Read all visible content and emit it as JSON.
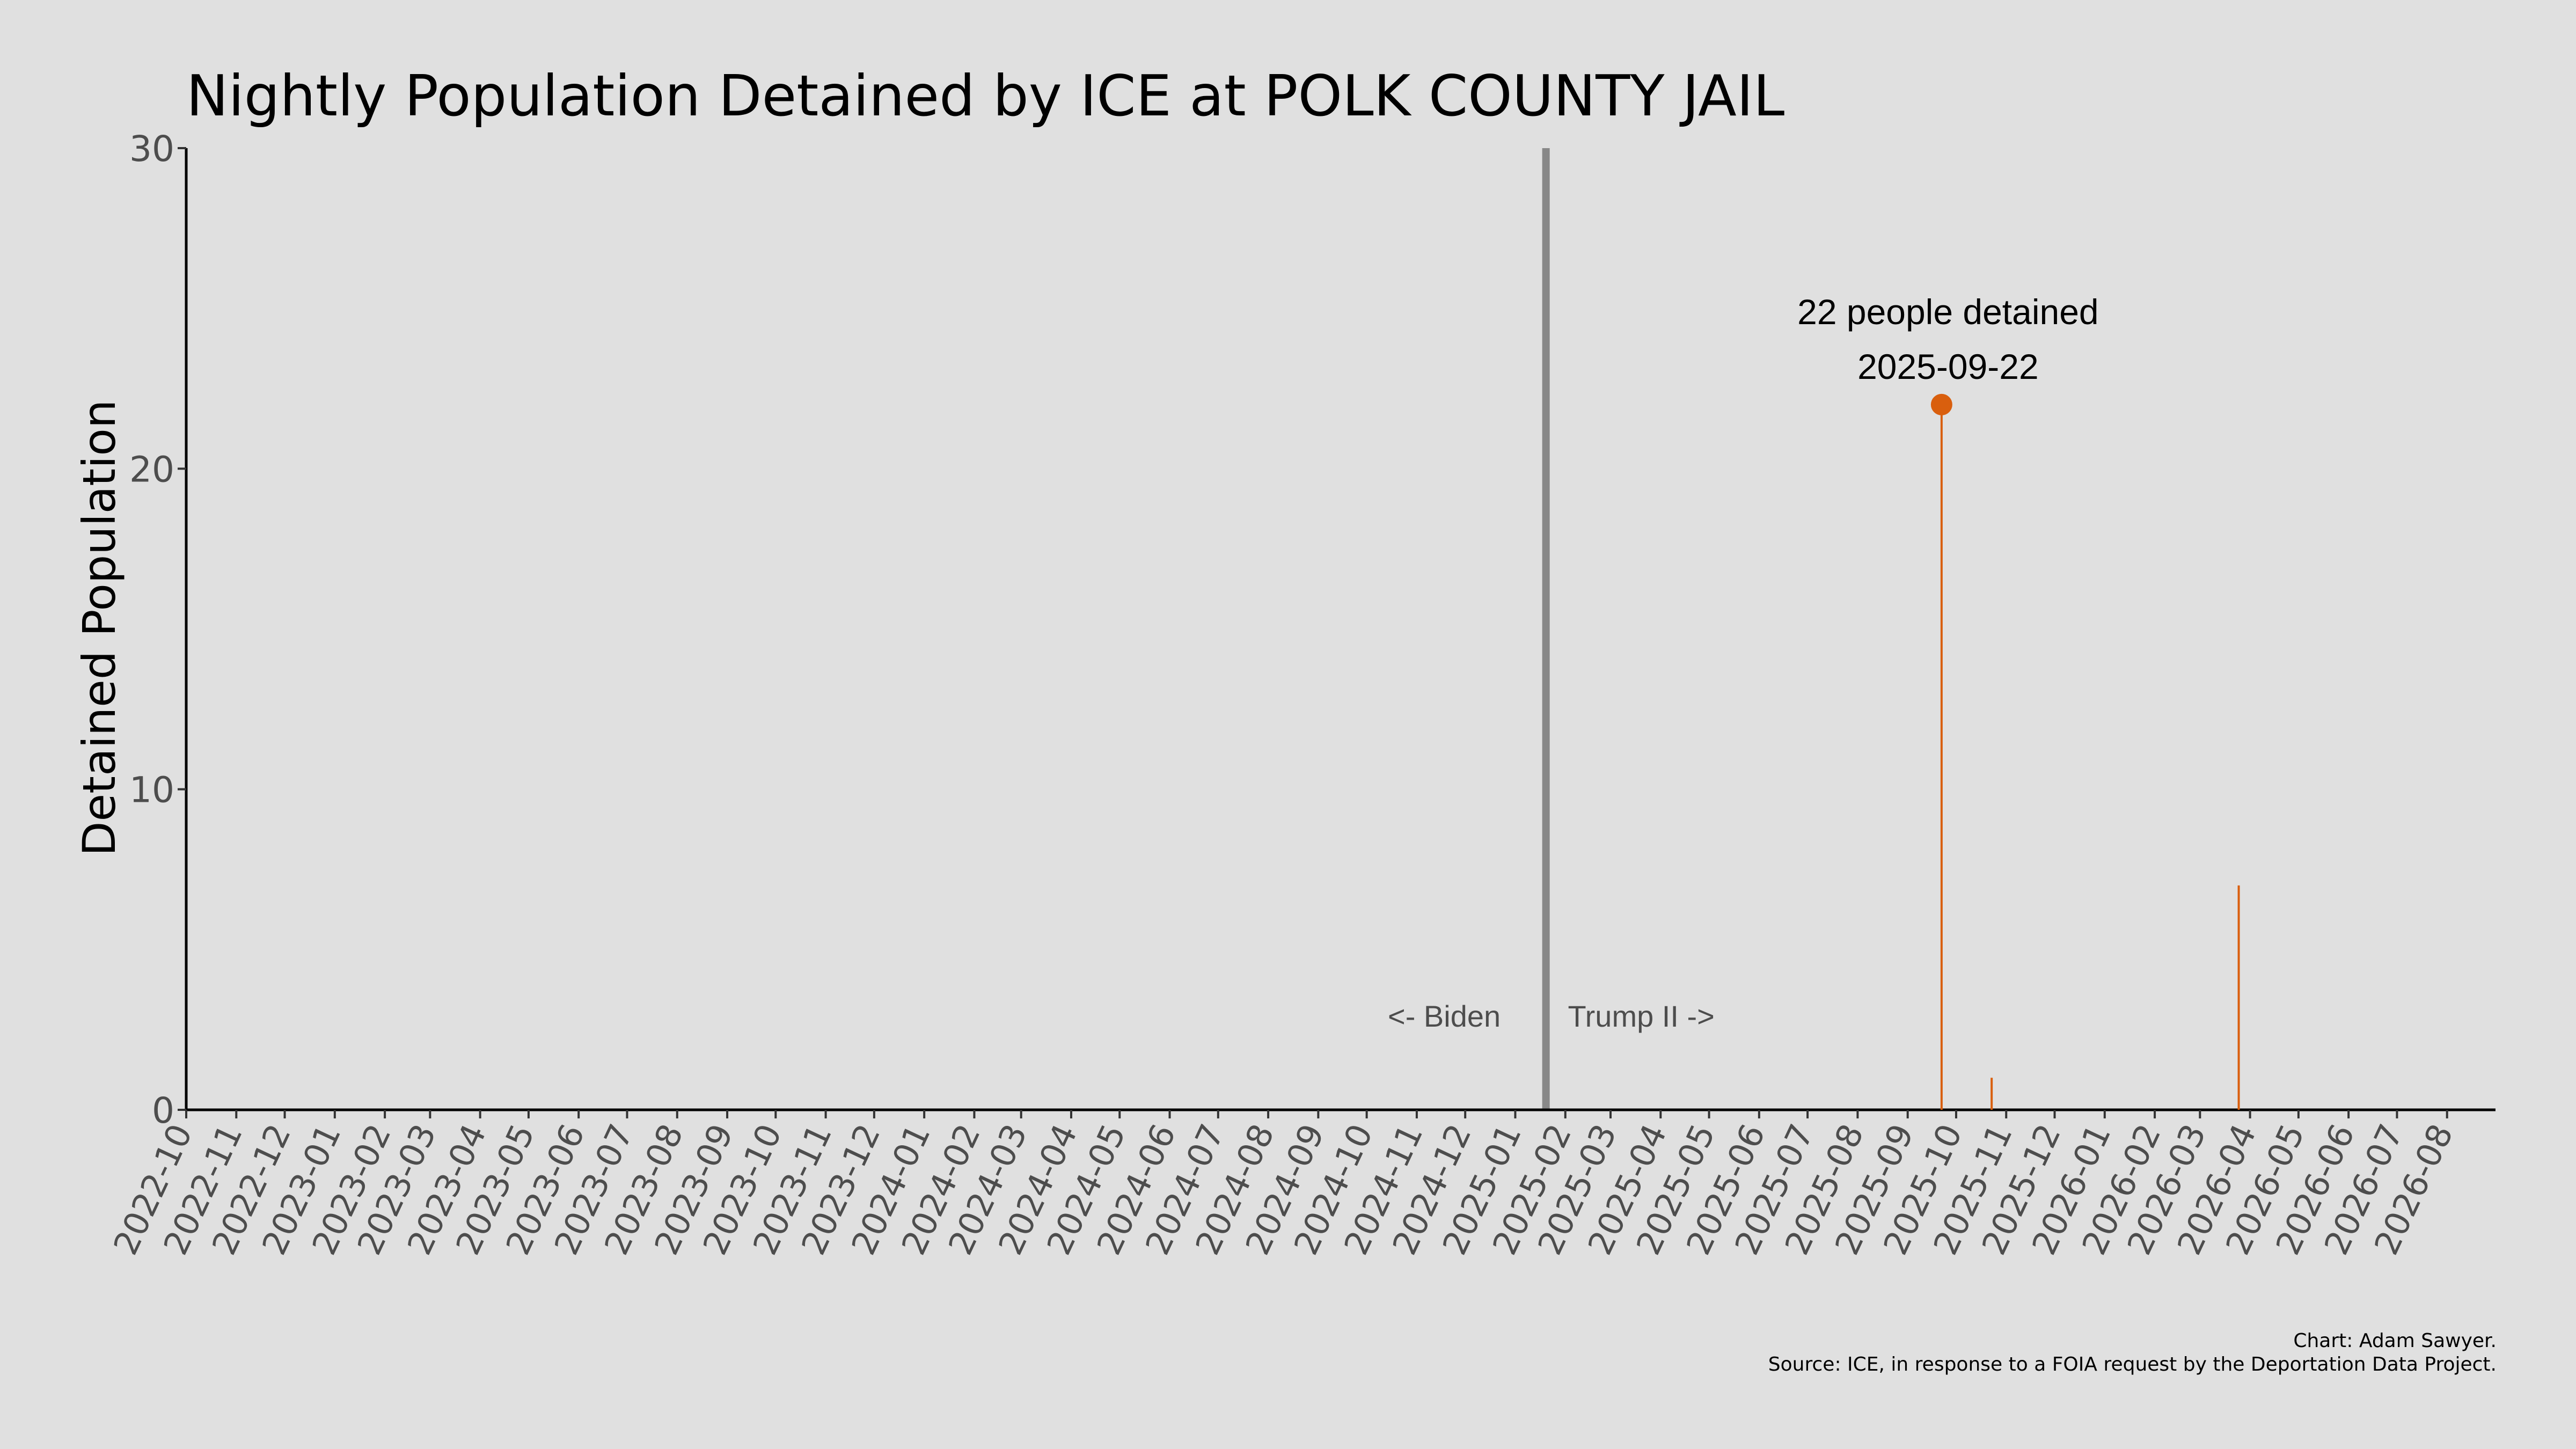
{
  "chart_data": {
    "type": "bar",
    "title": "Nightly Population Detained by ICE at POLK COUNTY JAIL",
    "xlabel": "",
    "ylabel": "Detained Population",
    "ylim": [
      0,
      30
    ],
    "yticks": [
      0,
      10,
      20,
      30
    ],
    "xlim": [
      "2022-10-01",
      "2026-08-31"
    ],
    "xticks": [
      "2022-10",
      "2022-11",
      "2022-12",
      "2023-01",
      "2023-02",
      "2023-03",
      "2023-04",
      "2023-05",
      "2023-06",
      "2023-07",
      "2023-08",
      "2023-09",
      "2023-10",
      "2023-11",
      "2023-12",
      "2024-01",
      "2024-02",
      "2024-03",
      "2024-04",
      "2024-05",
      "2024-06",
      "2024-07",
      "2024-08",
      "2024-09",
      "2024-10",
      "2024-11",
      "2024-12",
      "2025-01",
      "2025-02",
      "2025-03",
      "2025-04",
      "2025-05",
      "2025-06",
      "2025-07",
      "2025-08",
      "2025-09",
      "2025-10",
      "2025-11",
      "2025-12",
      "2026-01",
      "2026-02",
      "2026-03",
      "2026-04",
      "2026-05",
      "2026-06",
      "2026-07",
      "2026-08"
    ],
    "grid": false,
    "series": [
      {
        "color": "#d95f0e",
        "points": [
          {
            "x": "2025-09-22",
            "y": 22
          },
          {
            "x": "2025-10-23",
            "y": 1
          },
          {
            "x": "2026-03-25",
            "y": 7
          }
        ]
      }
    ],
    "divider": {
      "x": "2025-01-20",
      "color": "#888888"
    },
    "annotations": [
      {
        "text": "<- Biden",
        "x": "2024-11-18",
        "y": 3
      },
      {
        "text": "Trump II ->",
        "x": "2025-03-20",
        "y": 3
      }
    ],
    "peak_label": {
      "line1": "22 people detained",
      "line2": "2025-09-22",
      "x": "2025-09-22",
      "y": 22,
      "color": "#d95f0e"
    }
  },
  "captions": {
    "credit": "Chart: Adam Sawyer.",
    "source": "Source: ICE, in response to a FOIA request by the Deportation Data Project."
  }
}
